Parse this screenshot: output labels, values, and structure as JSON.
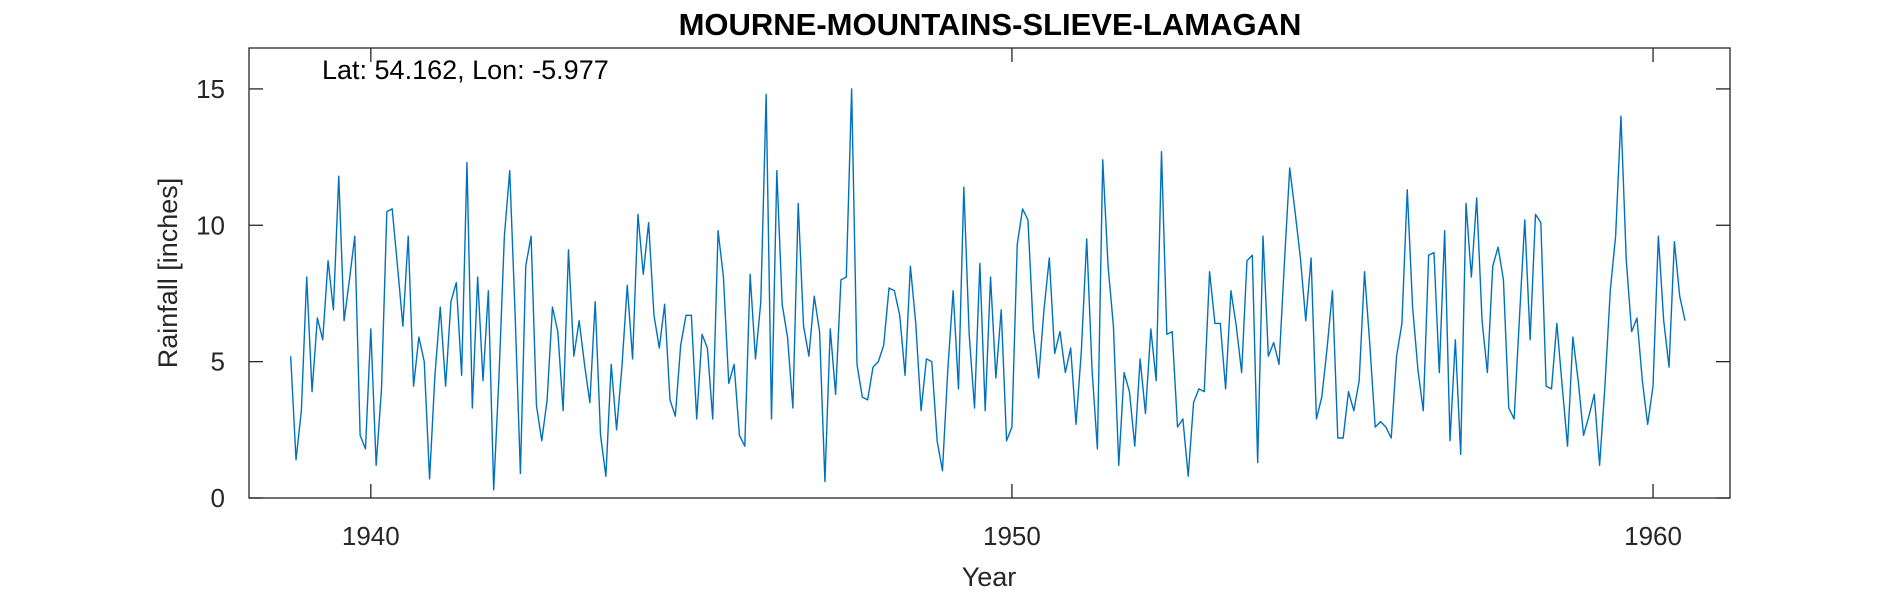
{
  "chart_data": {
    "type": "line",
    "title": "MOURNE-MOUNTAINS-SLIEVE-LAMAGAN",
    "annotation": "Lat: 54.162, Lon: -5.977",
    "xlabel": "Year",
    "ylabel": "Rainfall [inches]",
    "xlim": [
      1938.1,
      1961.2
    ],
    "ylim": [
      0,
      16.5
    ],
    "xticks": [
      1940,
      1950,
      1960
    ],
    "yticks": [
      0,
      5,
      10,
      15
    ],
    "grid": false,
    "color": "#0072BD",
    "x_start": 1938.75,
    "x_step_years": 0.08333,
    "series": [
      {
        "values": [
          5.2,
          1.4,
          3.2,
          8.1,
          3.9,
          6.6,
          5.8,
          8.7,
          6.9,
          11.8,
          6.5,
          8.0,
          9.6,
          2.3,
          1.8,
          6.2,
          1.2,
          4.0,
          10.5,
          10.6,
          8.5,
          6.3,
          9.6,
          4.1,
          5.9,
          5.0,
          0.7,
          4.5,
          7.0,
          4.1,
          7.2,
          7.9,
          4.5,
          12.3,
          3.3,
          8.1,
          4.3,
          7.6,
          0.3,
          4.5,
          9.6,
          12.0,
          6.8,
          0.9,
          8.5,
          9.6,
          3.4,
          2.1,
          3.6,
          7.0,
          6.1,
          3.2,
          9.1,
          5.2,
          6.5,
          4.9,
          3.5,
          7.2,
          2.3,
          0.8,
          4.9,
          2.5,
          4.8,
          7.8,
          5.1,
          10.4,
          8.2,
          10.1,
          6.7,
          5.5,
          7.1,
          3.6,
          3.0,
          5.6,
          6.7,
          6.7,
          2.9,
          6.0,
          5.5,
          2.9,
          9.8,
          8.1,
          4.2,
          4.9,
          2.3,
          1.9,
          8.2,
          5.1,
          7.2,
          14.8,
          2.9,
          12.0,
          7.1,
          5.9,
          3.3,
          10.8,
          6.3,
          5.2,
          7.4,
          6.1,
          0.6,
          6.2,
          3.8,
          8.0,
          8.1,
          15.0,
          4.9,
          3.7,
          3.6,
          4.8,
          5.0,
          5.6,
          7.7,
          7.6,
          6.7,
          4.5,
          8.5,
          6.4,
          3.2,
          5.1,
          5.0,
          2.1,
          1.0,
          4.7,
          7.6,
          4.0,
          11.4,
          6.0,
          3.3,
          8.6,
          3.2,
          8.1,
          4.4,
          6.9,
          2.1,
          2.6,
          9.3,
          10.6,
          10.2,
          6.2,
          4.4,
          6.9,
          8.8,
          5.3,
          6.1,
          4.6,
          5.5,
          2.7,
          5.4,
          9.5,
          4.7,
          1.8,
          12.4,
          8.5,
          6.3,
          1.2,
          4.6,
          3.9,
          1.9,
          5.1,
          3.1,
          6.2,
          4.3,
          12.7,
          6.0,
          6.1,
          2.6,
          2.9,
          0.8,
          3.5,
          4.0,
          3.9,
          8.3,
          6.4,
          6.4,
          4.0,
          7.6,
          6.3,
          4.6,
          8.7,
          8.9,
          1.3,
          9.6,
          5.2,
          5.7,
          4.9,
          8.6,
          12.1,
          10.5,
          8.8,
          6.5,
          8.8,
          2.9,
          3.7,
          5.5,
          7.6,
          2.2,
          2.2,
          3.9,
          3.2,
          4.3,
          8.3,
          5.6,
          2.6,
          2.8,
          2.6,
          2.2,
          5.2,
          6.4,
          11.3,
          7.0,
          4.7,
          3.2,
          8.9,
          9.0,
          4.6,
          9.8,
          2.1,
          5.8,
          1.6,
          10.8,
          8.1,
          11.0,
          6.5,
          4.6,
          8.5,
          9.2,
          8.0,
          3.3,
          2.9,
          6.6,
          10.2,
          5.8,
          10.4,
          10.1,
          4.1,
          4.0,
          6.4,
          4.1,
          1.9,
          5.9,
          4.3,
          2.3,
          3.0,
          3.8,
          1.2,
          4.1,
          7.6,
          9.6,
          14.0,
          8.7,
          6.1,
          6.6,
          4.3,
          2.7,
          4.1,
          9.6,
          6.5,
          4.8,
          9.4,
          7.4,
          6.5
        ]
      }
    ]
  }
}
